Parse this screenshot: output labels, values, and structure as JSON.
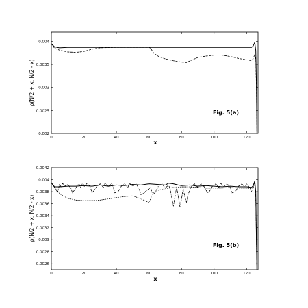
{
  "chart_data": [
    {
      "type": "line",
      "annotation": "Fig. 5(a)",
      "xlabel": "x",
      "ylabel": "ρ(N/2 + x, N/2 - x)",
      "xlim": [
        0,
        127
      ],
      "ylim": [
        0.002,
        0.0042
      ],
      "xticks": [
        0,
        20,
        40,
        60,
        80,
        100,
        120
      ],
      "xtick_labels": [
        "0",
        "20",
        "40",
        "60",
        "80",
        "100",
        "120"
      ],
      "yticks": [
        0.002,
        0.0025,
        0.003,
        0.0035,
        0.004
      ],
      "ytick_labels": [
        "0.002",
        "0.0025",
        "0.003",
        "0.0035",
        "0.004"
      ],
      "grid": false,
      "series": [
        {
          "style": "solid",
          "color": "#000000",
          "points": [
            [
              0,
              0.00395
            ],
            [
              2,
              0.00388
            ],
            [
              5,
              0.00386
            ],
            [
              10,
              0.00387
            ],
            [
              20,
              0.00387
            ],
            [
              40,
              0.00387
            ],
            [
              60,
              0.00387
            ],
            [
              80,
              0.00387
            ],
            [
              100,
              0.00387
            ],
            [
              120,
              0.00387
            ],
            [
              123,
              0.00387
            ],
            [
              124,
              0.0039
            ],
            [
              125,
              0.00398
            ],
            [
              125.6,
              0.0038
            ],
            [
              126,
              0.0031
            ],
            [
              126.3,
              0.002
            ]
          ]
        },
        {
          "style": "dashed",
          "color": "#000000",
          "points": [
            [
              0,
              0.00395
            ],
            [
              2,
              0.00385
            ],
            [
              5,
              0.00381
            ],
            [
              10,
              0.00377
            ],
            [
              15,
              0.00376
            ],
            [
              20,
              0.00378
            ],
            [
              25,
              0.00383
            ],
            [
              30,
              0.00386
            ],
            [
              40,
              0.00387
            ],
            [
              50,
              0.00387
            ],
            [
              60,
              0.00387
            ],
            [
              61,
              0.00385
            ],
            [
              63,
              0.00374
            ],
            [
              66,
              0.00367
            ],
            [
              70,
              0.00362
            ],
            [
              75,
              0.00358
            ],
            [
              80,
              0.00355
            ],
            [
              83,
              0.00354
            ],
            [
              86,
              0.00359
            ],
            [
              90,
              0.00365
            ],
            [
              95,
              0.00368
            ],
            [
              100,
              0.0037
            ],
            [
              105,
              0.0037
            ],
            [
              110,
              0.00367
            ],
            [
              115,
              0.00363
            ],
            [
              120,
              0.0036
            ],
            [
              123,
              0.00358
            ],
            [
              124,
              0.00362
            ],
            [
              125,
              0.00372
            ],
            [
              125.6,
              0.0036
            ],
            [
              126,
              0.003
            ],
            [
              126.3,
              0.002
            ]
          ]
        }
      ]
    },
    {
      "type": "line",
      "annotation": "Fig. 5(b)",
      "xlabel": "x",
      "ylabel": "ρ(N/2 + x, N/2 - x)",
      "xlim": [
        0,
        127
      ],
      "ylim": [
        0.0025,
        0.0042
      ],
      "xticks": [
        0,
        20,
        40,
        60,
        80,
        100,
        120
      ],
      "xtick_labels": [
        "0",
        "20",
        "40",
        "60",
        "80",
        "100",
        "120"
      ],
      "yticks": [
        0.0026,
        0.0028,
        0.003,
        0.0032,
        0.0034,
        0.0036,
        0.0038,
        0.004,
        0.0042
      ],
      "ytick_labels": [
        "0.0026",
        "0.0028",
        "0.003",
        "0.0032",
        "0.0034",
        "0.0036",
        "0.0038",
        "0.004",
        "0.0042"
      ],
      "grid": false,
      "series": [
        {
          "style": "solid",
          "color": "#000000",
          "points": [
            [
              0,
              0.00395
            ],
            [
              2,
              0.00388
            ],
            [
              5,
              0.00388
            ],
            [
              10,
              0.00389
            ],
            [
              15,
              0.00389
            ],
            [
              20,
              0.0039
            ],
            [
              25,
              0.00389
            ],
            [
              30,
              0.00391
            ],
            [
              35,
              0.00389
            ],
            [
              40,
              0.00391
            ],
            [
              45,
              0.0039
            ],
            [
              50,
              0.00392
            ],
            [
              55,
              0.00391
            ],
            [
              60,
              0.00393
            ],
            [
              65,
              0.00392
            ],
            [
              70,
              0.00391
            ],
            [
              72,
              0.00394
            ],
            [
              75,
              0.00393
            ],
            [
              78,
              0.00391
            ],
            [
              80,
              0.0039
            ],
            [
              85,
              0.00391
            ],
            [
              90,
              0.00389
            ],
            [
              95,
              0.0039
            ],
            [
              100,
              0.00389
            ],
            [
              105,
              0.00388
            ],
            [
              110,
              0.00389
            ],
            [
              115,
              0.00388
            ],
            [
              120,
              0.00388
            ],
            [
              123,
              0.00387
            ],
            [
              124,
              0.0039
            ],
            [
              125,
              0.00398
            ],
            [
              125.6,
              0.0038
            ],
            [
              126,
              0.003
            ],
            [
              126.3,
              0.0025
            ]
          ]
        },
        {
          "style": "dotted",
          "color": "#000000",
          "points": [
            [
              0,
              0.00395
            ],
            [
              3,
              0.00382
            ],
            [
              6,
              0.00375
            ],
            [
              10,
              0.00369
            ],
            [
              15,
              0.00366
            ],
            [
              20,
              0.00365
            ],
            [
              25,
              0.00365
            ],
            [
              30,
              0.00366
            ],
            [
              35,
              0.00368
            ],
            [
              40,
              0.0037
            ],
            [
              45,
              0.00372
            ],
            [
              50,
              0.00373
            ],
            [
              55,
              0.00368
            ],
            [
              60,
              0.00362
            ],
            [
              62,
              0.00374
            ],
            [
              65,
              0.00382
            ],
            [
              70,
              0.00385
            ],
            [
              75,
              0.00387
            ],
            [
              80,
              0.00388
            ],
            [
              85,
              0.00388
            ],
            [
              90,
              0.00387
            ],
            [
              95,
              0.00386
            ],
            [
              100,
              0.00386
            ],
            [
              105,
              0.00386
            ],
            [
              110,
              0.00387
            ],
            [
              115,
              0.00386
            ],
            [
              120,
              0.00386
            ],
            [
              123,
              0.00385
            ],
            [
              124,
              0.00388
            ],
            [
              125,
              0.00392
            ],
            [
              125.6,
              0.0037
            ],
            [
              126,
              0.003
            ],
            [
              126.3,
              0.0025
            ]
          ]
        },
        {
          "style": "dash-dot",
          "color": "#000000",
          "points": [
            [
              0,
              0.00395
            ],
            [
              2,
              0.00387
            ],
            [
              4,
              0.0038
            ],
            [
              5,
              0.00392
            ],
            [
              6,
              0.00388
            ],
            [
              7,
              0.00394
            ],
            [
              8,
              0.00389
            ],
            [
              10,
              0.00392
            ],
            [
              12,
              0.00386
            ],
            [
              13,
              0.00378
            ],
            [
              15,
              0.00386
            ],
            [
              16,
              0.0039
            ],
            [
              17,
              0.00393
            ],
            [
              18,
              0.00387
            ],
            [
              19,
              0.00394
            ],
            [
              20,
              0.00388
            ],
            [
              22,
              0.00394
            ],
            [
              24,
              0.00388
            ],
            [
              25,
              0.00378
            ],
            [
              26,
              0.00381
            ],
            [
              28,
              0.00389
            ],
            [
              30,
              0.00393
            ],
            [
              32,
              0.00387
            ],
            [
              33,
              0.00394
            ],
            [
              35,
              0.00389
            ],
            [
              37,
              0.00394
            ],
            [
              38,
              0.00388
            ],
            [
              39,
              0.00378
            ],
            [
              41,
              0.0038
            ],
            [
              43,
              0.00389
            ],
            [
              45,
              0.00393
            ],
            [
              47,
              0.00387
            ],
            [
              48,
              0.00394
            ],
            [
              50,
              0.00389
            ],
            [
              52,
              0.00393
            ],
            [
              54,
              0.00385
            ],
            [
              55,
              0.00375
            ],
            [
              57,
              0.00378
            ],
            [
              59,
              0.00383
            ],
            [
              61,
              0.00387
            ],
            [
              62,
              0.00378
            ],
            [
              64,
              0.0038
            ],
            [
              66,
              0.0039
            ],
            [
              68,
              0.00393
            ],
            [
              70,
              0.00386
            ],
            [
              72,
              0.00391
            ],
            [
              73,
              0.00385
            ],
            [
              74,
              0.0037
            ],
            [
              75,
              0.00356
            ],
            [
              76,
              0.00372
            ],
            [
              77,
              0.00388
            ],
            [
              78,
              0.00372
            ],
            [
              79,
              0.00355
            ],
            [
              80,
              0.00368
            ],
            [
              81,
              0.00385
            ],
            [
              82,
              0.00372
            ],
            [
              83,
              0.00362
            ],
            [
              84,
              0.00375
            ],
            [
              86,
              0.00389
            ],
            [
              88,
              0.00393
            ],
            [
              90,
              0.00387
            ],
            [
              92,
              0.00393
            ],
            [
              94,
              0.00388
            ],
            [
              96,
              0.00378
            ],
            [
              97,
              0.0038
            ],
            [
              99,
              0.00389
            ],
            [
              101,
              0.00393
            ],
            [
              103,
              0.00387
            ],
            [
              104,
              0.00394
            ],
            [
              106,
              0.00389
            ],
            [
              108,
              0.00393
            ],
            [
              110,
              0.00387
            ],
            [
              111,
              0.00378
            ],
            [
              113,
              0.0038
            ],
            [
              115,
              0.00389
            ],
            [
              117,
              0.00393
            ],
            [
              119,
              0.00388
            ],
            [
              120,
              0.00393
            ],
            [
              122,
              0.00386
            ],
            [
              123,
              0.0038
            ],
            [
              124,
              0.00386
            ],
            [
              125,
              0.00396
            ],
            [
              125.6,
              0.0037
            ],
            [
              126,
              0.003
            ],
            [
              126.3,
              0.0025
            ]
          ]
        }
      ]
    }
  ]
}
